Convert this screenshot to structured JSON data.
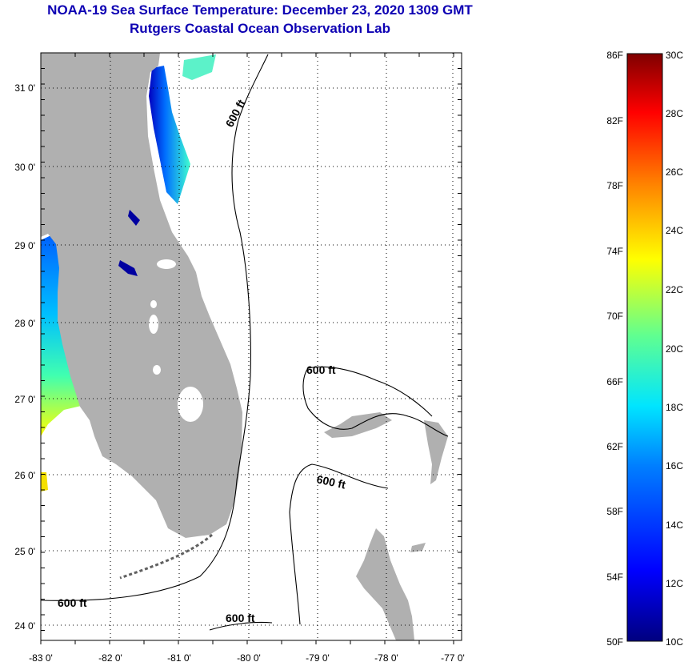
{
  "title": {
    "line1": "NOAA-19 Sea Surface Temperature:  December 23, 2020 1309 GMT",
    "line2": "Rutgers Coastal Ocean Observation Lab"
  },
  "map": {
    "lat_labels": [
      "31 0'",
      "30 0'",
      "29 0'",
      "28 0'",
      "27 0'",
      "26 0'",
      "25 0'",
      "24 0'"
    ],
    "lon_labels": [
      "-83 0'",
      "-82 0'",
      "-81 0'",
      "-80 0'",
      "-79 0'",
      "-78 0'",
      "-77 0'"
    ],
    "contour_labels": [
      "600 ft",
      "600 ft",
      "600 ft",
      "600 ft",
      "600 ft"
    ],
    "colors": {
      "land": "#b0b0b0",
      "water": "#ffffff",
      "border": "#000000"
    }
  },
  "colorbar": {
    "fahrenheit": [
      "86F",
      "82F",
      "78F",
      "74F",
      "70F",
      "66F",
      "62F",
      "58F",
      "54F",
      "50F"
    ],
    "celsius": [
      "30C",
      "28C",
      "26C",
      "24C",
      "22C",
      "20C",
      "18C",
      "16C",
      "14C",
      "12C",
      "10C"
    ]
  }
}
